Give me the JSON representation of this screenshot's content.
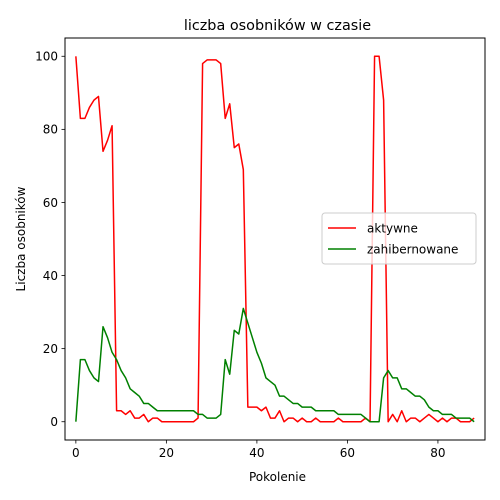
{
  "chart_data": {
    "type": "line",
    "title": "liczba osobników w czasie",
    "xlabel": "Pokolenie",
    "ylabel": "Liczba osobników",
    "xlim": [
      -2.4,
      90.4
    ],
    "ylim": [
      -5,
      105
    ],
    "xticks": [
      0,
      20,
      40,
      60,
      80
    ],
    "yticks": [
      0,
      20,
      40,
      60,
      80,
      100
    ],
    "grid": false,
    "legend": {
      "placement": "center-right"
    },
    "x": [
      0,
      1,
      2,
      3,
      4,
      5,
      6,
      7,
      8,
      9,
      10,
      11,
      12,
      13,
      14,
      15,
      16,
      17,
      18,
      19,
      20,
      21,
      22,
      23,
      24,
      25,
      26,
      27,
      28,
      29,
      30,
      31,
      32,
      33,
      34,
      35,
      36,
      37,
      38,
      39,
      40,
      41,
      42,
      43,
      44,
      45,
      46,
      47,
      48,
      49,
      50,
      51,
      52,
      53,
      54,
      55,
      56,
      57,
      58,
      59,
      60,
      61,
      62,
      63,
      64,
      65,
      66,
      67,
      68,
      69,
      70,
      71,
      72,
      73,
      74,
      75,
      76,
      77,
      78,
      79,
      80,
      81,
      82,
      83,
      84,
      85,
      86,
      87,
      88
    ],
    "series": [
      {
        "name": "aktywne",
        "color": "#ff0000",
        "values": [
          100,
          83,
          83,
          86,
          88,
          89,
          74,
          77,
          81,
          3,
          3,
          2,
          3,
          1,
          1,
          2,
          0,
          1,
          1,
          0,
          0,
          0,
          0,
          0,
          0,
          0,
          0,
          1,
          98,
          99,
          99,
          99,
          98,
          83,
          87,
          75,
          76,
          69,
          4,
          4,
          4,
          3,
          4,
          1,
          1,
          3,
          0,
          1,
          1,
          0,
          1,
          0,
          0,
          1,
          0,
          0,
          0,
          0,
          1,
          0,
          0,
          0,
          0,
          0,
          1,
          0,
          100,
          100,
          88,
          0,
          2,
          0,
          3,
          0,
          1,
          1,
          0,
          1,
          2,
          1,
          0,
          1,
          0,
          1,
          1,
          0,
          0,
          0,
          1
        ]
      },
      {
        "name": "zahibernowane",
        "color": "#008000",
        "values": [
          0,
          17,
          17,
          14,
          12,
          11,
          26,
          23,
          19,
          17,
          14,
          12,
          9,
          8,
          7,
          5,
          5,
          4,
          3,
          3,
          3,
          3,
          3,
          3,
          3,
          3,
          3,
          2,
          2,
          1,
          1,
          1,
          2,
          17,
          13,
          25,
          24,
          31,
          27,
          23,
          19,
          16,
          12,
          11,
          10,
          7,
          7,
          6,
          5,
          5,
          4,
          4,
          4,
          3,
          3,
          3,
          3,
          3,
          2,
          2,
          2,
          2,
          2,
          2,
          1,
          0,
          0,
          0,
          12,
          14,
          12,
          12,
          9,
          9,
          8,
          7,
          7,
          6,
          4,
          3,
          3,
          2,
          2,
          2,
          1,
          1,
          1,
          1,
          0
        ]
      }
    ]
  }
}
